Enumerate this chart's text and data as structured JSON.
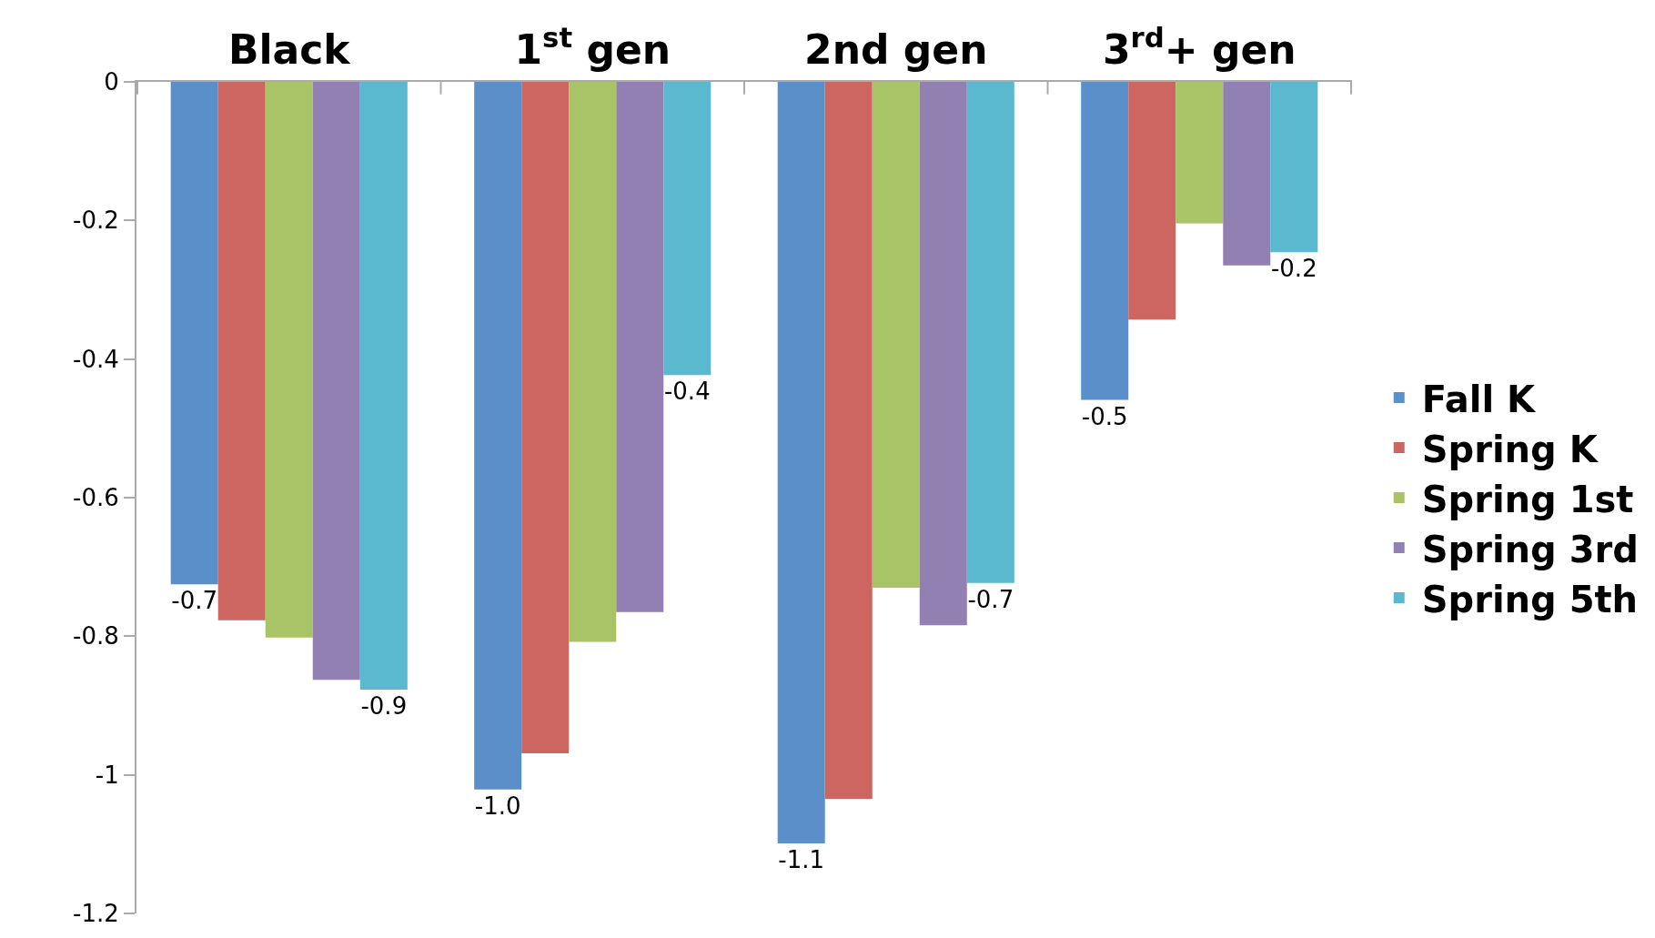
{
  "chart_data": {
    "type": "bar",
    "categories": [
      "Black",
      "1$^{st}$ gen",
      "2nd gen",
      "3$^{rd}$+ gen"
    ],
    "series": [
      {
        "name": "Fall K",
        "color": "#5b8fc9",
        "values": [
          -0.725,
          -1.021,
          -1.099,
          -0.459
        ],
        "value_labels": [
          "-0.7",
          "-1.0",
          "-1.1",
          "-0.5"
        ]
      },
      {
        "name": "Spring K",
        "color": "#cd6560",
        "values": [
          -0.777,
          -0.969,
          -1.035,
          -0.343
        ],
        "value_labels": [
          null,
          null,
          null,
          null
        ]
      },
      {
        "name": "Spring 1st",
        "color": "#a8c466",
        "values": [
          -0.802,
          -0.808,
          -0.73,
          -0.204
        ],
        "value_labels": [
          null,
          null,
          null,
          null
        ]
      },
      {
        "name": "Spring 3rd",
        "color": "#9380b3",
        "values": [
          -0.863,
          -0.765,
          -0.784,
          -0.265
        ],
        "value_labels": [
          null,
          null,
          null,
          null
        ]
      },
      {
        "name": "Spring 5th",
        "color": "#5ab8cf",
        "values": [
          -0.877,
          -0.423,
          -0.723,
          -0.246
        ],
        "value_labels": [
          "-0.9",
          "-0.4",
          "-0.7",
          "-0.2"
        ]
      }
    ],
    "ylim": [
      -1.2,
      0
    ],
    "yticks": [
      0,
      -0.2,
      -0.4,
      -0.6,
      -0.8,
      -1,
      -1.2
    ],
    "legend": "right"
  }
}
